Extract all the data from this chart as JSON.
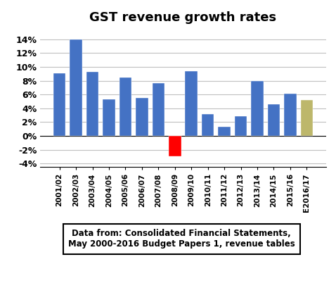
{
  "title": "GST revenue growth rates",
  "categories": [
    "2001/02",
    "2002/03",
    "2003/04",
    "2004/05",
    "2005/06",
    "2006/07",
    "2007/08",
    "2008/09",
    "2009/10",
    "2010/11",
    "2011/12",
    "2012/13",
    "2013/14",
    "2014/15",
    "2015/16",
    "E2016/17"
  ],
  "values": [
    0.091,
    0.14,
    0.093,
    0.053,
    0.085,
    0.055,
    0.076,
    -0.03,
    0.094,
    0.032,
    0.013,
    0.029,
    0.08,
    0.046,
    0.061,
    0.052
  ],
  "bar_colors": [
    "#4472C4",
    "#4472C4",
    "#4472C4",
    "#4472C4",
    "#4472C4",
    "#4472C4",
    "#4472C4",
    "#FF0000",
    "#4472C4",
    "#4472C4",
    "#4472C4",
    "#4472C4",
    "#4472C4",
    "#4472C4",
    "#4472C4",
    "#BDB76B"
  ],
  "ylim": [
    -0.045,
    0.155
  ],
  "yticks": [
    -0.04,
    -0.02,
    0.0,
    0.02,
    0.04,
    0.06,
    0.08,
    0.1,
    0.12,
    0.14
  ],
  "ytick_labels": [
    "-4%",
    "-2%",
    "0%",
    "2%",
    "4%",
    "6%",
    "8%",
    "10%",
    "12%",
    "14%"
  ],
  "annotation": "Data from: Consolidated Financial Statements,\nMay 2000-2016 Budget Papers 1, revenue tables",
  "background_color": "#FFFFFF",
  "grid_color": "#C0C0C0",
  "title_fontsize": 13,
  "bar_width": 0.75
}
